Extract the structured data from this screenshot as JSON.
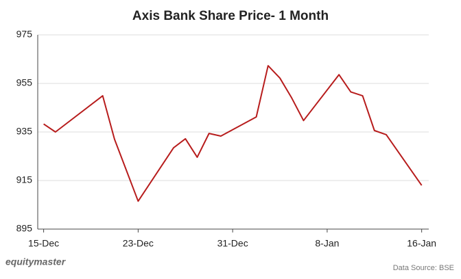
{
  "chart_data": {
    "type": "line",
    "title": "Axis Bank Share Price- 1 Month",
    "x": [
      0,
      1,
      5,
      6,
      8,
      11,
      12,
      13,
      14,
      15,
      18,
      19,
      20,
      21,
      22,
      25,
      26,
      27,
      28,
      29,
      32
    ],
    "series": [
      {
        "name": "Axis Bank",
        "color": "#b71c1c",
        "values": [
          938.3,
          935,
          949.9,
          932,
          906.5,
          928.5,
          932.2,
          924.6,
          934.4,
          933.3,
          941.2,
          962.3,
          957.2,
          949,
          939.7,
          958.6,
          951.5,
          949.9,
          935.6,
          933.9,
          913
        ]
      }
    ],
    "xlim": [
      -0.5,
      32.6
    ],
    "xticks": [
      {
        "value": 0,
        "label": "15-Dec"
      },
      {
        "value": 8,
        "label": "23-Dec"
      },
      {
        "value": 16,
        "label": "31-Dec"
      },
      {
        "value": 24,
        "label": "8-Jan"
      },
      {
        "value": 32,
        "label": "16-Jan"
      }
    ],
    "ylim": [
      895,
      975
    ],
    "yticks": [
      895,
      915,
      935,
      955,
      975
    ],
    "grid": true,
    "brand": "equitymaster",
    "source": "Data Source: BSE"
  }
}
